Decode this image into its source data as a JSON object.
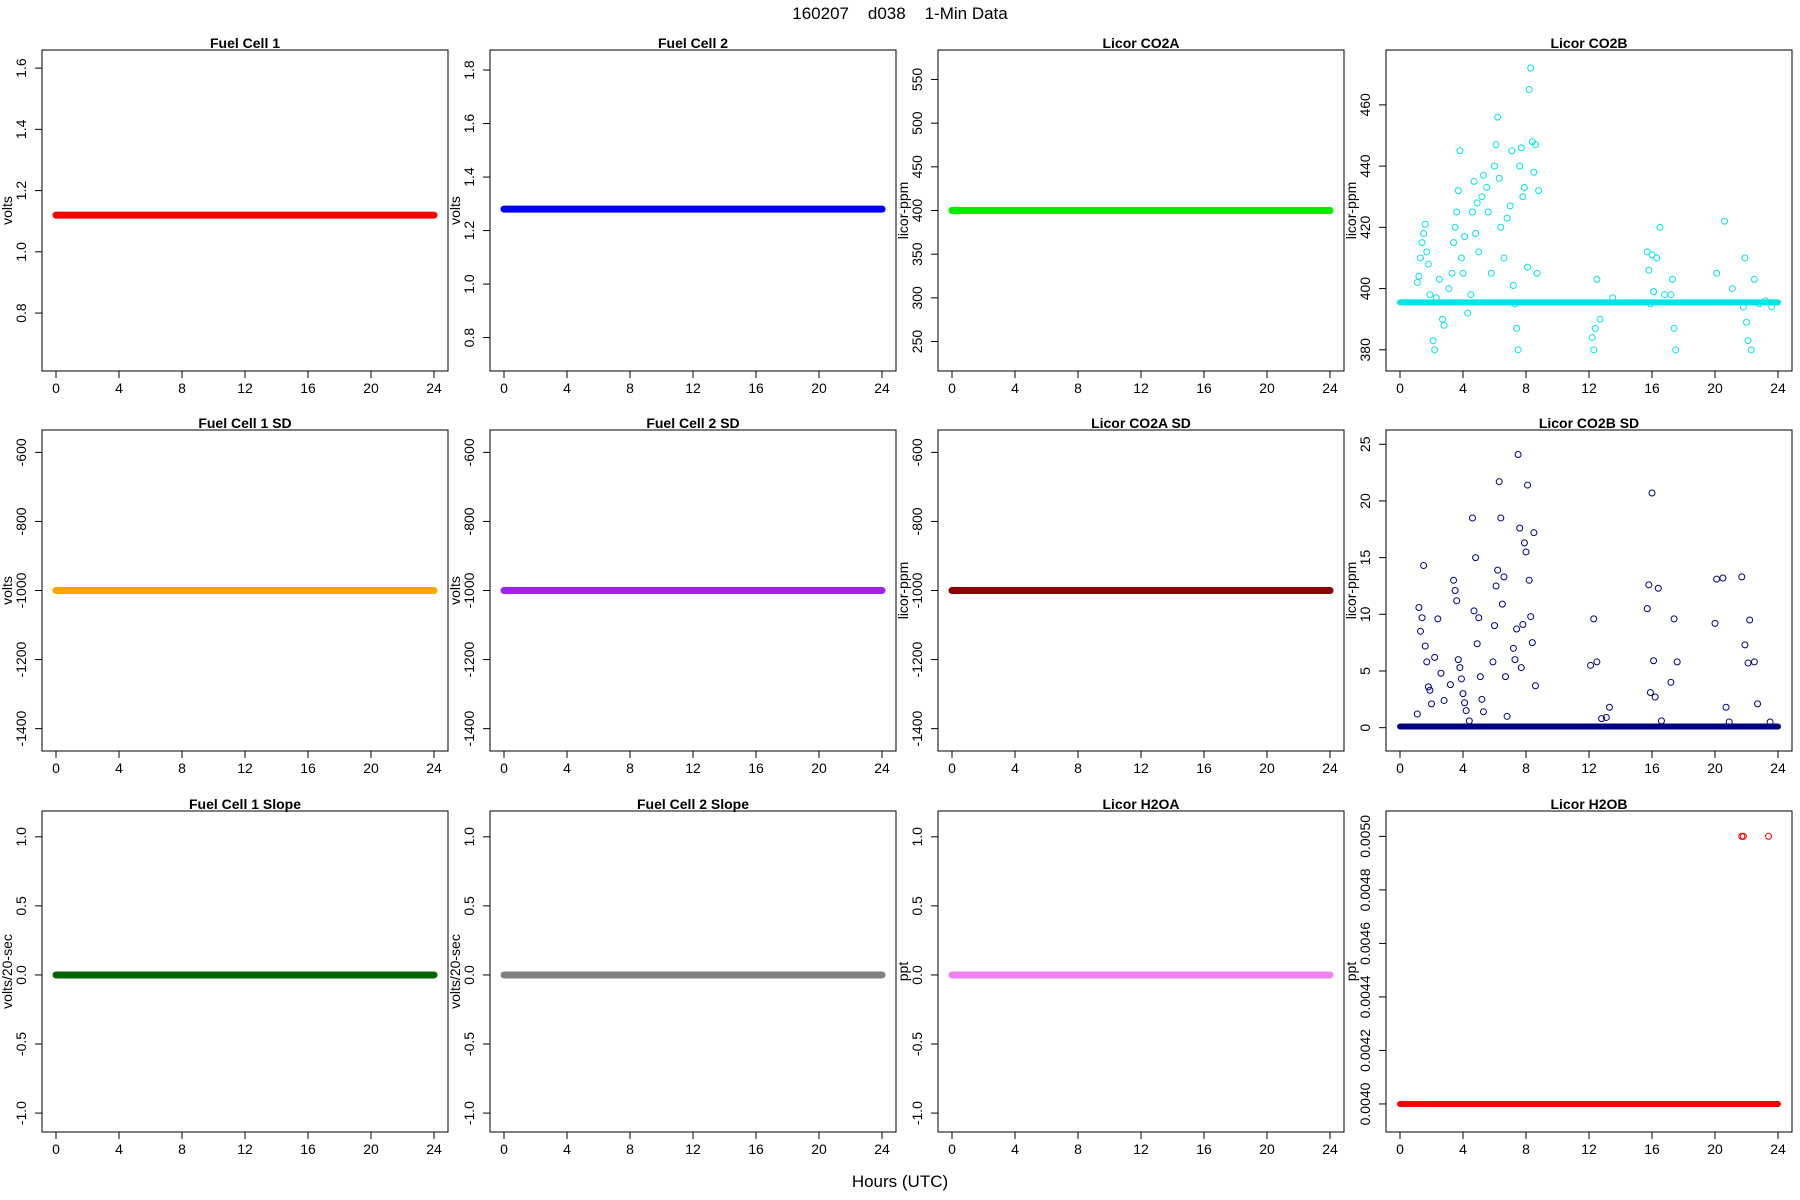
{
  "figure": {
    "title": "160207    d038    1-Min Data",
    "xlabel": "Hours (UTC)"
  },
  "chart_data": [
    {
      "type": "scatter",
      "title": "Fuel Cell 1",
      "ylabel": "volts",
      "xlim": [
        0,
        24
      ],
      "ylim": [
        0.65,
        1.62
      ],
      "xticks": [
        0,
        4,
        8,
        12,
        16,
        20,
        24
      ],
      "yticks": [
        0.8,
        1.0,
        1.2,
        1.4,
        1.6
      ],
      "series": [
        {
          "color": "#ff0000",
          "line": {
            "x": [
              0,
              24
            ],
            "y": 1.12
          }
        }
      ]
    },
    {
      "type": "scatter",
      "title": "Fuel Cell 2",
      "ylabel": "volts",
      "xlim": [
        0,
        24
      ],
      "ylim": [
        0.72,
        1.83
      ],
      "xticks": [
        0,
        4,
        8,
        12,
        16,
        20,
        24
      ],
      "yticks": [
        0.8,
        1.0,
        1.2,
        1.4,
        1.6,
        1.8
      ],
      "series": [
        {
          "color": "#0000ff",
          "line": {
            "x": [
              0,
              24
            ],
            "y": 1.28
          }
        }
      ]
    },
    {
      "type": "scatter",
      "title": "Licor CO2A",
      "ylabel": "licor-ppm",
      "xlim": [
        0,
        24
      ],
      "ylim": [
        230,
        570
      ],
      "xticks": [
        0,
        4,
        8,
        12,
        16,
        20,
        24
      ],
      "yticks": [
        250,
        300,
        350,
        400,
        450,
        500,
        550
      ],
      "series": [
        {
          "color": "#00ee00",
          "line": {
            "x": [
              0,
              24
            ],
            "y": 400
          }
        }
      ]
    },
    {
      "type": "scatter",
      "title": "Licor CO2B",
      "ylabel": "licor-ppm",
      "xlim": [
        0,
        24
      ],
      "ylim": [
        377,
        474
      ],
      "xticks": [
        0,
        4,
        8,
        12,
        16,
        20,
        24
      ],
      "yticks": [
        380,
        400,
        420,
        440,
        460
      ],
      "series": [
        {
          "color": "#00e5e5",
          "baseline": {
            "x": [
              0,
              24
            ],
            "y": 395.5
          },
          "points": [
            [
              1.1,
              402
            ],
            [
              1.2,
              404
            ],
            [
              1.3,
              410
            ],
            [
              1.4,
              415
            ],
            [
              1.5,
              418
            ],
            [
              1.6,
              421
            ],
            [
              1.7,
              412
            ],
            [
              1.8,
              408
            ],
            [
              1.9,
              398
            ],
            [
              2.1,
              383
            ],
            [
              2.2,
              380
            ],
            [
              2.3,
              397
            ],
            [
              2.5,
              403
            ],
            [
              2.7,
              390
            ],
            [
              2.8,
              388
            ],
            [
              3.1,
              400
            ],
            [
              3.3,
              405
            ],
            [
              3.4,
              415
            ],
            [
              3.5,
              420
            ],
            [
              3.6,
              425
            ],
            [
              3.7,
              432
            ],
            [
              3.8,
              445
            ],
            [
              3.9,
              410
            ],
            [
              4.0,
              405
            ],
            [
              4.1,
              417
            ],
            [
              4.3,
              392
            ],
            [
              4.5,
              398
            ],
            [
              4.6,
              425
            ],
            [
              4.7,
              435
            ],
            [
              4.8,
              418
            ],
            [
              4.9,
              428
            ],
            [
              5.0,
              412
            ],
            [
              5.2,
              430
            ],
            [
              5.3,
              437
            ],
            [
              5.5,
              433
            ],
            [
              5.6,
              425
            ],
            [
              5.8,
              405
            ],
            [
              6.0,
              440
            ],
            [
              6.1,
              447
            ],
            [
              6.2,
              456
            ],
            [
              6.3,
              436
            ],
            [
              6.4,
              420
            ],
            [
              6.6,
              410
            ],
            [
              6.8,
              423
            ],
            [
              7.0,
              427
            ],
            [
              7.1,
              445
            ],
            [
              7.2,
              401
            ],
            [
              7.3,
              395
            ],
            [
              7.4,
              387
            ],
            [
              7.5,
              380
            ],
            [
              7.6,
              440
            ],
            [
              7.7,
              446
            ],
            [
              7.8,
              430
            ],
            [
              7.9,
              433
            ],
            [
              8.1,
              407
            ],
            [
              8.2,
              465
            ],
            [
              8.3,
              472
            ],
            [
              8.4,
              448
            ],
            [
              8.5,
              438
            ],
            [
              8.6,
              447
            ],
            [
              8.7,
              405
            ],
            [
              8.8,
              432
            ],
            [
              12.2,
              384
            ],
            [
              12.3,
              380
            ],
            [
              12.4,
              387
            ],
            [
              12.5,
              403
            ],
            [
              12.7,
              390
            ],
            [
              13.5,
              397
            ],
            [
              15.7,
              412
            ],
            [
              15.8,
              406
            ],
            [
              15.9,
              395
            ],
            [
              16.0,
              411
            ],
            [
              16.1,
              399
            ],
            [
              16.3,
              410
            ],
            [
              16.5,
              420
            ],
            [
              16.8,
              398
            ],
            [
              17.2,
              398
            ],
            [
              17.3,
              403
            ],
            [
              17.4,
              387
            ],
            [
              17.5,
              380
            ],
            [
              20.1,
              405
            ],
            [
              20.6,
              422
            ],
            [
              21.1,
              400
            ],
            [
              21.8,
              394
            ],
            [
              21.9,
              410
            ],
            [
              22.0,
              389
            ],
            [
              22.1,
              383
            ],
            [
              22.3,
              380
            ],
            [
              22.5,
              403
            ],
            [
              22.8,
              395
            ],
            [
              23.2,
              396
            ],
            [
              23.6,
              394
            ]
          ]
        }
      ]
    },
    {
      "type": "scatter",
      "title": "Fuel Cell 1 SD",
      "ylabel": "volts",
      "xlim": [
        0,
        24
      ],
      "ylim": [
        -1430,
        -570
      ],
      "xticks": [
        0,
        4,
        8,
        12,
        16,
        20,
        24
      ],
      "yticks": [
        -1400,
        -1200,
        -1000,
        -800,
        -600
      ],
      "series": [
        {
          "color": "#ffa500",
          "line": {
            "x": [
              0,
              24
            ],
            "y": -1000
          }
        }
      ]
    },
    {
      "type": "scatter",
      "title": "Fuel Cell 2 SD",
      "ylabel": "volts",
      "xlim": [
        0,
        24
      ],
      "ylim": [
        -1430,
        -570
      ],
      "xticks": [
        0,
        4,
        8,
        12,
        16,
        20,
        24
      ],
      "yticks": [
        -1400,
        -1200,
        -1000,
        -800,
        -600
      ],
      "series": [
        {
          "color": "#a020f0",
          "line": {
            "x": [
              0,
              24
            ],
            "y": -1000
          }
        }
      ]
    },
    {
      "type": "scatter",
      "title": "Licor CO2A SD",
      "ylabel": "licor-ppm",
      "xlim": [
        0,
        24
      ],
      "ylim": [
        -1430,
        -570
      ],
      "xticks": [
        0,
        4,
        8,
        12,
        16,
        20,
        24
      ],
      "yticks": [
        -1400,
        -1200,
        -1000,
        -800,
        -600
      ],
      "series": [
        {
          "color": "#8b0000",
          "line": {
            "x": [
              0,
              24
            ],
            "y": -1000
          }
        }
      ]
    },
    {
      "type": "scatter",
      "title": "Licor CO2B SD",
      "ylabel": "licor-ppm",
      "xlim": [
        0,
        24
      ],
      "ylim": [
        -1,
        25.2
      ],
      "xticks": [
        0,
        4,
        8,
        12,
        16,
        20,
        24
      ],
      "yticks": [
        0,
        5,
        10,
        15,
        20,
        25
      ],
      "series": [
        {
          "color": "#000080",
          "baseline": {
            "x": [
              0,
              24
            ],
            "y": 0.1
          },
          "points": [
            [
              1.1,
              1.2
            ],
            [
              1.2,
              10.6
            ],
            [
              1.3,
              8.5
            ],
            [
              1.4,
              9.7
            ],
            [
              1.5,
              14.3
            ],
            [
              1.6,
              7.2
            ],
            [
              1.7,
              5.8
            ],
            [
              1.8,
              3.6
            ],
            [
              1.9,
              3.3
            ],
            [
              2.0,
              2.1
            ],
            [
              2.2,
              6.2
            ],
            [
              2.4,
              9.6
            ],
            [
              2.6,
              4.8
            ],
            [
              2.8,
              2.4
            ],
            [
              3.2,
              3.8
            ],
            [
              3.4,
              13.0
            ],
            [
              3.5,
              12.1
            ],
            [
              3.6,
              11.2
            ],
            [
              3.7,
              6.0
            ],
            [
              3.8,
              5.3
            ],
            [
              3.9,
              4.3
            ],
            [
              4.0,
              3.0
            ],
            [
              4.1,
              2.2
            ],
            [
              4.2,
              1.5
            ],
            [
              4.4,
              0.6
            ],
            [
              4.6,
              18.5
            ],
            [
              4.7,
              10.3
            ],
            [
              4.8,
              15.0
            ],
            [
              4.9,
              7.4
            ],
            [
              5.0,
              9.7
            ],
            [
              5.1,
              4.5
            ],
            [
              5.2,
              2.5
            ],
            [
              5.3,
              1.4
            ],
            [
              5.9,
              5.8
            ],
            [
              6.0,
              9.0
            ],
            [
              6.1,
              12.5
            ],
            [
              6.2,
              13.9
            ],
            [
              6.3,
              21.7
            ],
            [
              6.4,
              18.5
            ],
            [
              6.5,
              10.9
            ],
            [
              6.6,
              13.3
            ],
            [
              6.7,
              4.5
            ],
            [
              6.8,
              1.0
            ],
            [
              7.2,
              7.0
            ],
            [
              7.3,
              6.0
            ],
            [
              7.4,
              8.7
            ],
            [
              7.5,
              24.1
            ],
            [
              7.6,
              17.6
            ],
            [
              7.7,
              5.3
            ],
            [
              7.8,
              9.1
            ],
            [
              7.9,
              16.3
            ],
            [
              8.0,
              15.5
            ],
            [
              8.1,
              21.4
            ],
            [
              8.2,
              13.0
            ],
            [
              8.3,
              9.8
            ],
            [
              8.4,
              7.5
            ],
            [
              8.5,
              17.2
            ],
            [
              8.6,
              3.7
            ],
            [
              12.1,
              5.5
            ],
            [
              12.3,
              9.6
            ],
            [
              12.5,
              5.8
            ],
            [
              12.8,
              0.8
            ],
            [
              13.1,
              0.9
            ],
            [
              13.3,
              1.8
            ],
            [
              15.7,
              10.5
            ],
            [
              15.8,
              12.6
            ],
            [
              15.9,
              3.1
            ],
            [
              16.0,
              20.7
            ],
            [
              16.1,
              5.9
            ],
            [
              16.2,
              2.7
            ],
            [
              16.4,
              12.3
            ],
            [
              16.6,
              0.6
            ],
            [
              17.2,
              4.0
            ],
            [
              17.4,
              9.6
            ],
            [
              17.6,
              5.8
            ],
            [
              20.0,
              9.2
            ],
            [
              20.1,
              13.1
            ],
            [
              20.5,
              13.2
            ],
            [
              20.7,
              1.8
            ],
            [
              20.9,
              0.5
            ],
            [
              21.7,
              13.3
            ],
            [
              21.9,
              7.3
            ],
            [
              22.1,
              5.7
            ],
            [
              22.2,
              9.5
            ],
            [
              22.5,
              5.8
            ],
            [
              22.7,
              2.1
            ],
            [
              23.5,
              0.5
            ]
          ]
        }
      ]
    },
    {
      "type": "scatter",
      "title": "Fuel Cell 1 Slope",
      "ylabel": "volts/20-sec",
      "xlim": [
        0,
        24
      ],
      "ylim": [
        -1.05,
        1.1
      ],
      "xticks": [
        0,
        4,
        8,
        12,
        16,
        20,
        24
      ],
      "yticks": [
        -1.0,
        -0.5,
        0.0,
        0.5,
        1.0
      ],
      "series": [
        {
          "color": "#006400",
          "line": {
            "x": [
              0,
              24
            ],
            "y": 0
          }
        }
      ]
    },
    {
      "type": "scatter",
      "title": "Fuel Cell 2 Slope",
      "ylabel": "volts/20-sec",
      "xlim": [
        0,
        24
      ],
      "ylim": [
        -1.05,
        1.1
      ],
      "xticks": [
        0,
        4,
        8,
        12,
        16,
        20,
        24
      ],
      "yticks": [
        -1.0,
        -0.5,
        0.0,
        0.5,
        1.0
      ],
      "series": [
        {
          "color": "#808080",
          "line": {
            "x": [
              0,
              24
            ],
            "y": 0
          }
        }
      ]
    },
    {
      "type": "scatter",
      "title": "Licor H2OA",
      "ylabel": "ppt",
      "xlim": [
        0,
        24
      ],
      "ylim": [
        -1.05,
        1.1
      ],
      "xticks": [
        0,
        4,
        8,
        12,
        16,
        20,
        24
      ],
      "yticks": [
        -1.0,
        -0.5,
        0.0,
        0.5,
        1.0
      ],
      "series": [
        {
          "color": "#ee82ee",
          "line": {
            "x": [
              0,
              24
            ],
            "y": 0
          }
        }
      ]
    },
    {
      "type": "scatter",
      "title": "Licor H2OB",
      "ylabel": "ppt",
      "xlim": [
        0,
        24
      ],
      "ylim": [
        0.00394,
        0.00505
      ],
      "xticks": [
        0,
        4,
        8,
        12,
        16,
        20,
        24
      ],
      "yticks": [
        0.004,
        0.0042,
        0.0044,
        0.0046,
        0.0048,
        0.005
      ],
      "series": [
        {
          "color": "#ff0000",
          "baseline": {
            "x": [
              0,
              24
            ],
            "y": 0.004
          },
          "points": [
            [
              21.7,
              0.005
            ],
            [
              21.8,
              0.005
            ],
            [
              23.4,
              0.005
            ]
          ]
        }
      ]
    }
  ]
}
